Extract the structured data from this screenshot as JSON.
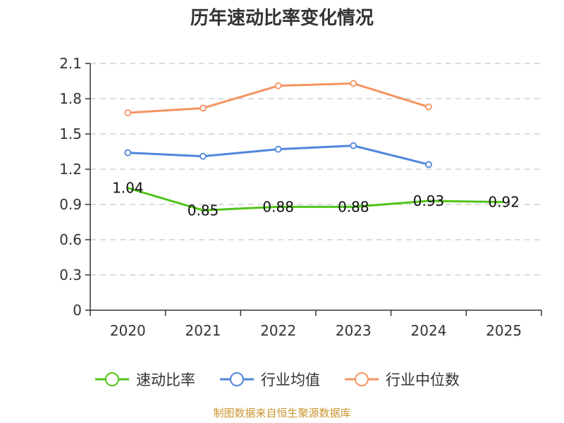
{
  "chart_data": {
    "type": "line",
    "title": "历年速动比率变化情况",
    "categories": [
      "2020",
      "2021",
      "2022",
      "2023",
      "2024",
      "2025"
    ],
    "ylim": [
      0,
      2.1
    ],
    "yticks": [
      "0",
      "0.3",
      "0.6",
      "0.9",
      "1.2",
      "1.5",
      "1.8",
      "2.1"
    ],
    "grid": true,
    "legend_position": "bottom",
    "series": [
      {
        "name": "速动比率",
        "color": "#52c41a",
        "values": [
          1.04,
          0.85,
          0.88,
          0.88,
          0.93,
          0.92
        ],
        "labels": [
          "1.04",
          "0.85",
          "0.88",
          "0.88",
          "0.93",
          "0.92"
        ]
      },
      {
        "name": "行业均值",
        "color": "#4f86db",
        "values": [
          1.34,
          1.31,
          1.37,
          1.4,
          1.24,
          null
        ]
      },
      {
        "name": "行业中位数",
        "color": "#f59461",
        "values": [
          1.68,
          1.72,
          1.91,
          1.93,
          1.73,
          null
        ]
      }
    ],
    "source": "制图数据来自恒生聚源数据库"
  }
}
